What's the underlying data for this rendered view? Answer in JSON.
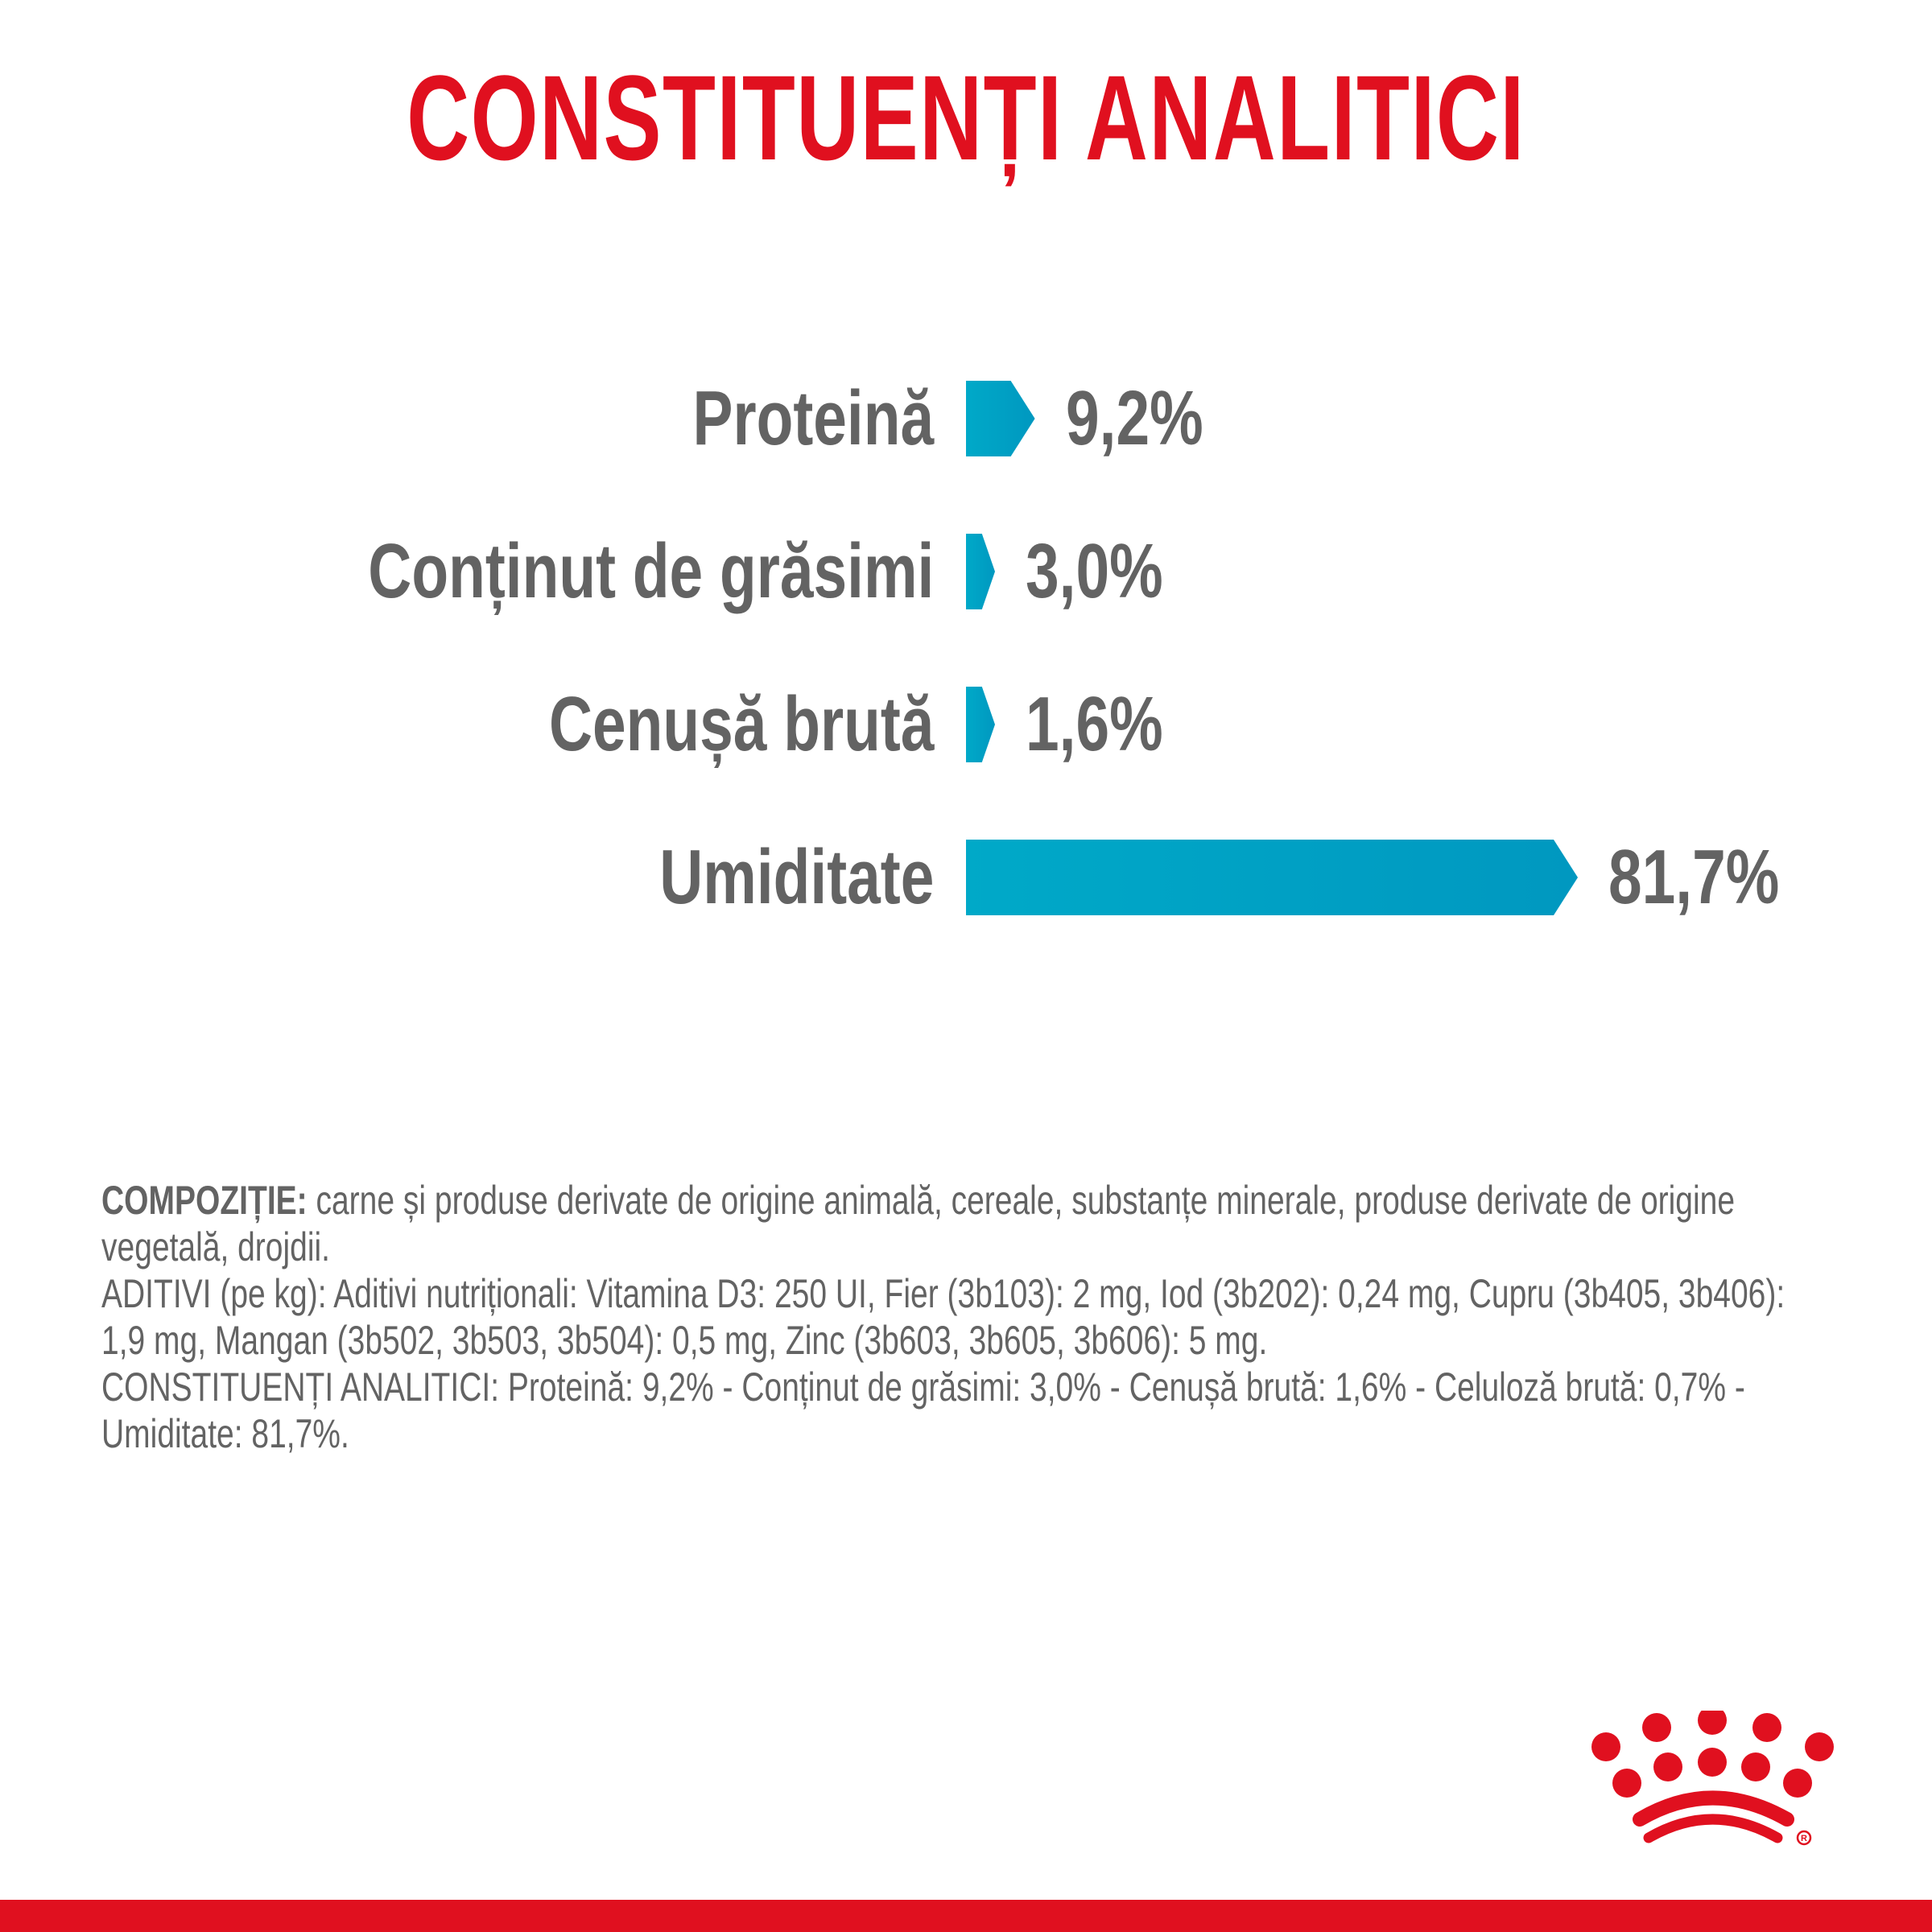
{
  "header": {
    "title": "CONSTITUENȚI ANALITICI"
  },
  "colors": {
    "brand_red": "#e0101f",
    "bar_start": "#00a9c8",
    "bar_end": "#0098c0",
    "text_gray": "#636363"
  },
  "chart_data": {
    "type": "bar",
    "orientation": "horizontal",
    "title": "CONSTITUENȚI ANALITICI",
    "categories": [
      "Proteină",
      "Conținut de grăsimi",
      "Cenușă brută",
      "Umiditate"
    ],
    "values": [
      9.2,
      3.0,
      1.6,
      81.7
    ],
    "value_labels": [
      "9,2%",
      "3,0%",
      "1,6%",
      "81,7%"
    ],
    "unit": "%",
    "xlabel": "",
    "ylabel": "",
    "grid": false,
    "legend": "none"
  },
  "rows": [
    {
      "label": "Proteină",
      "value": "9,2%"
    },
    {
      "label": "Conținut de grăsimi",
      "value": "3,0%"
    },
    {
      "label": "Cenușă brută",
      "value": "1,6%"
    },
    {
      "label": "Umiditate",
      "value": "81,7%"
    }
  ],
  "composition": {
    "lead": "COMPOZIȚIE:",
    "text": " carne și produse derivate de origine animală, cereale, substanțe minerale, produse derivate de origine vegetală, drojdii.",
    "additives": "ADITIVI (pe kg): Aditivi nutriționali: Vitamina D3: 250 UI, Fier (3b103): 2 mg, Iod (3b202): 0,24 mg, Cupru (3b405, 3b406): 1,9 mg, Mangan (3b502, 3b503, 3b504): 0,5 mg, Zinc (3b603, 3b605, 3b606): 5 mg.",
    "analytical": "CONSTITUENȚI ANALITICI: Proteină: 9,2% - Conținut de grăsimi: 3,0% - Cenușă brută: 1,6% - Celuloză brută: 0,7% - Umiditate: 81,7%."
  },
  "logo": {
    "icon": "royal-canin-crown-icon"
  }
}
